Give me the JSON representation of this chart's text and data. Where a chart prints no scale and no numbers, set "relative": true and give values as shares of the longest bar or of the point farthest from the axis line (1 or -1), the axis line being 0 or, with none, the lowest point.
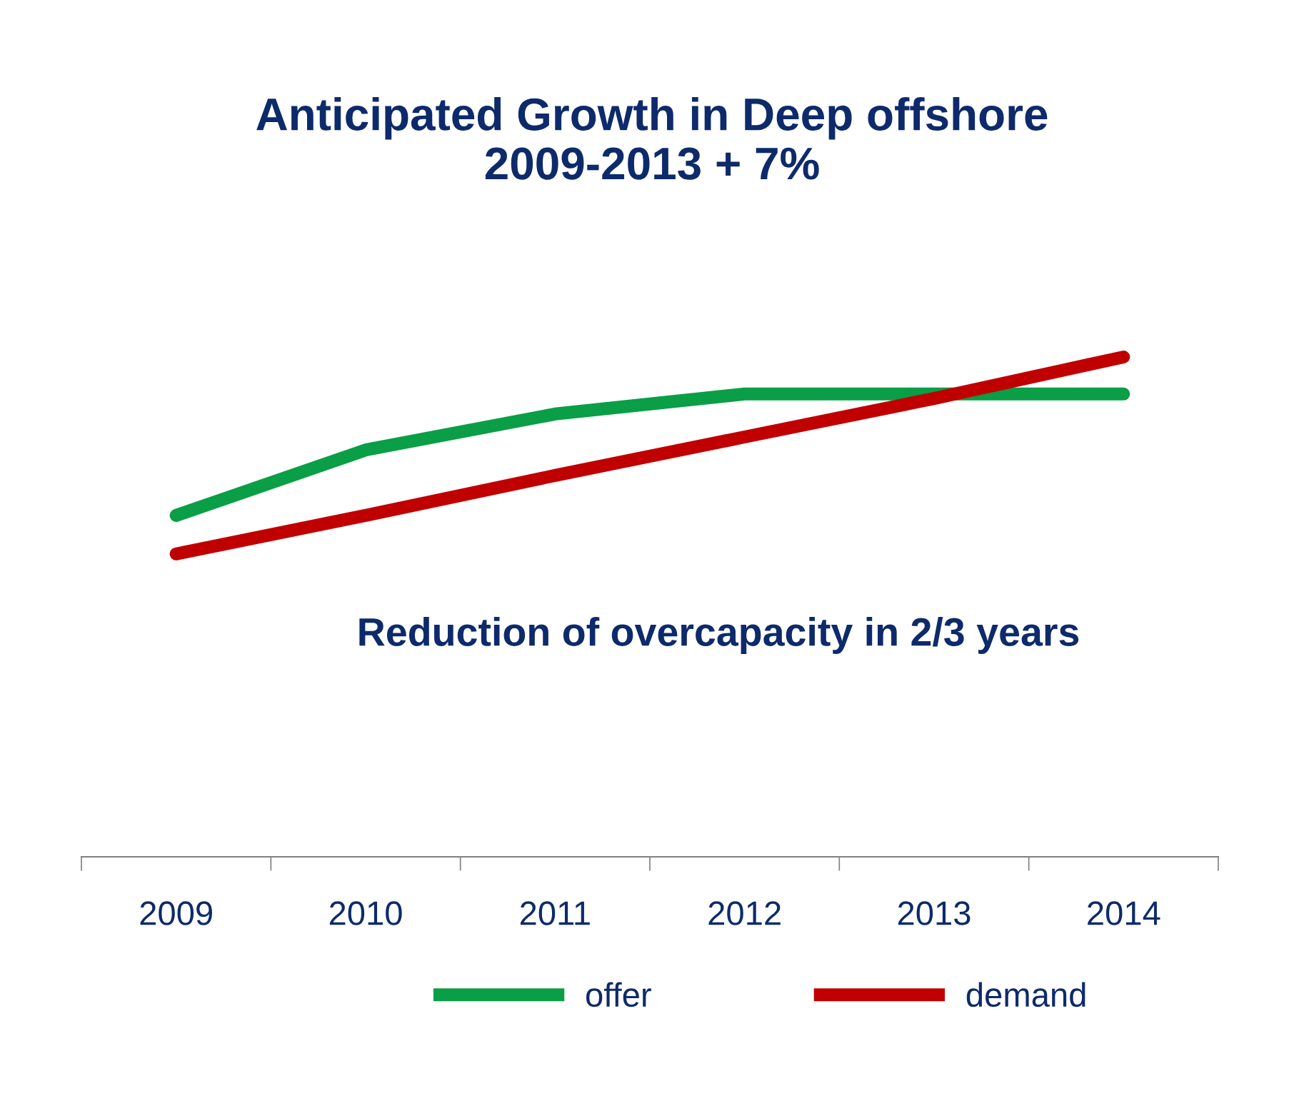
{
  "chart_data": {
    "type": "line",
    "title": "Anticipated Growth in Deep offshore\n2009-2013 + 7%",
    "categories": [
      "2009",
      "2010",
      "2011",
      "2012",
      "2013",
      "2014"
    ],
    "series": [
      {
        "name": "offer",
        "color": "#0a9e46",
        "values": [
          0.683,
          0.814,
          0.886,
          0.926,
          0.926,
          0.926
        ]
      },
      {
        "name": "demand",
        "color": "#c00000",
        "values": [
          0.606,
          0.683,
          0.763,
          0.84,
          0.917,
          1.0
        ]
      }
    ],
    "relative": true,
    "annotations": [
      "Reduction of overcapacity in 2/3 years"
    ],
    "legend": "bottom",
    "grid": false,
    "marker": "none",
    "line_style": "solid"
  }
}
